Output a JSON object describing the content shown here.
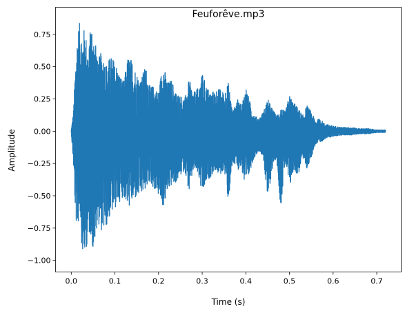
{
  "chart_data": {
    "type": "line",
    "title": "Feuforêve.mp3",
    "xlabel": "Time (s)",
    "ylabel": "Amplitude",
    "xlim": [
      -0.036,
      0.756
    ],
    "ylim": [
      -1.09,
      0.96
    ],
    "x_ticks": [
      0.0,
      0.1,
      0.2,
      0.3,
      0.4,
      0.5,
      0.6,
      0.7
    ],
    "x_tick_labels": [
      "0.0",
      "0.1",
      "0.2",
      "0.3",
      "0.4",
      "0.5",
      "0.6",
      "0.7"
    ],
    "y_ticks": [
      -1.0,
      -0.75,
      -0.5,
      -0.25,
      0.0,
      0.25,
      0.5,
      0.75
    ],
    "y_tick_labels": [
      "−1.00",
      "−0.75",
      "−0.50",
      "−0.25",
      "0.00",
      "0.25",
      "0.50",
      "0.75"
    ],
    "grid": false,
    "line_color": "#1f77b4",
    "series": [
      {
        "envelope_time_s": [
          0.0,
          0.005,
          0.01,
          0.015,
          0.02,
          0.025,
          0.03,
          0.035,
          0.04,
          0.045,
          0.05,
          0.055,
          0.06,
          0.07,
          0.08,
          0.09,
          0.1,
          0.11,
          0.12,
          0.13,
          0.14,
          0.15,
          0.16,
          0.17,
          0.18,
          0.19,
          0.2,
          0.21,
          0.22,
          0.23,
          0.24,
          0.25,
          0.26,
          0.27,
          0.28,
          0.29,
          0.3,
          0.31,
          0.32,
          0.33,
          0.34,
          0.35,
          0.36,
          0.37,
          0.38,
          0.39,
          0.4,
          0.41,
          0.42,
          0.43,
          0.44,
          0.45,
          0.46,
          0.47,
          0.48,
          0.49,
          0.5,
          0.51,
          0.52,
          0.53,
          0.54,
          0.55,
          0.56,
          0.57,
          0.58,
          0.59,
          0.6,
          0.62,
          0.64,
          0.66,
          0.68,
          0.7,
          0.72
        ],
        "envelope_max": [
          0.01,
          0.15,
          0.55,
          0.8,
          0.85,
          0.75,
          0.8,
          0.72,
          0.6,
          0.87,
          0.7,
          0.8,
          0.55,
          0.62,
          0.52,
          0.58,
          0.55,
          0.45,
          0.38,
          0.58,
          0.55,
          0.45,
          0.4,
          0.52,
          0.35,
          0.35,
          0.3,
          0.55,
          0.38,
          0.4,
          0.3,
          0.28,
          0.25,
          0.4,
          0.3,
          0.33,
          0.45,
          0.35,
          0.3,
          0.32,
          0.33,
          0.3,
          0.38,
          0.15,
          0.25,
          0.2,
          0.35,
          0.22,
          0.12,
          0.1,
          0.15,
          0.25,
          0.18,
          0.12,
          0.18,
          0.15,
          0.28,
          0.22,
          0.18,
          0.12,
          0.2,
          0.15,
          0.08,
          0.1,
          0.06,
          0.05,
          0.04,
          0.03,
          0.03,
          0.02,
          0.02,
          0.01,
          0.01
        ],
        "envelope_min": [
          -0.01,
          -0.25,
          -0.7,
          -0.75,
          -0.6,
          -0.95,
          -0.98,
          -0.9,
          -0.82,
          -0.8,
          -0.95,
          -0.85,
          -0.7,
          -0.78,
          -0.75,
          -0.65,
          -0.6,
          -0.55,
          -0.5,
          -0.6,
          -0.55,
          -0.52,
          -0.5,
          -0.45,
          -0.4,
          -0.45,
          -0.5,
          -0.6,
          -0.48,
          -0.42,
          -0.4,
          -0.35,
          -0.3,
          -0.48,
          -0.3,
          -0.33,
          -0.5,
          -0.4,
          -0.35,
          -0.3,
          -0.35,
          -0.3,
          -0.55,
          -0.25,
          -0.3,
          -0.28,
          -0.48,
          -0.3,
          -0.2,
          -0.15,
          -0.2,
          -0.55,
          -0.3,
          -0.2,
          -0.6,
          -0.25,
          -0.45,
          -0.3,
          -0.35,
          -0.2,
          -0.3,
          -0.2,
          -0.1,
          -0.1,
          -0.06,
          -0.05,
          -0.04,
          -0.03,
          -0.03,
          -0.02,
          -0.02,
          -0.01,
          -0.01
        ]
      }
    ]
  }
}
